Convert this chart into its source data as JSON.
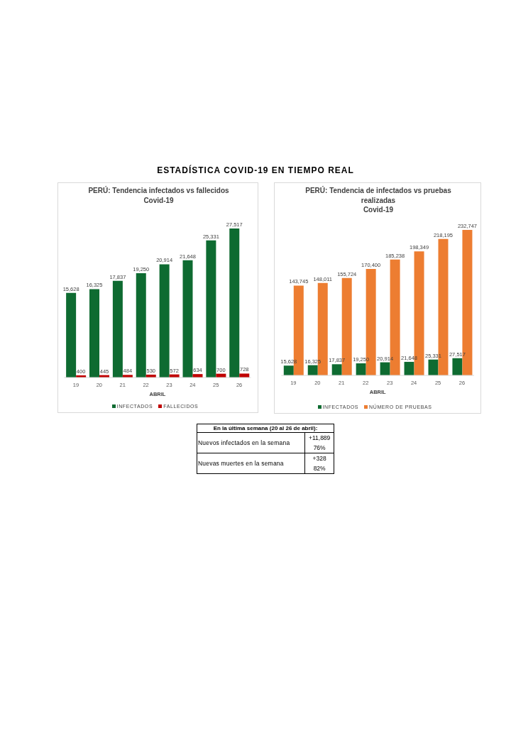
{
  "chart_data": [
    {
      "type": "other",
      "title": "ESTADÍSTICA COVID-19 EN TIEMPO REAL"
    },
    {
      "type": "bar",
      "title": "PERÚ: Tendencia infectados vs fallecidos",
      "subtitle": "Covid-19",
      "xlabel": "ABRIL",
      "categories": [
        "19",
        "20",
        "21",
        "22",
        "23",
        "24",
        "25",
        "26"
      ],
      "series": [
        {
          "name": "INFECTADOS",
          "color": "#0e6b31",
          "values": [
            15628,
            16325,
            17837,
            19250,
            20914,
            21648,
            25331,
            27517
          ],
          "value_labels": [
            "15,628",
            "16,325",
            "17,837",
            "19,250",
            "20,914",
            "21,648",
            "25,331",
            "27,517"
          ]
        },
        {
          "name": "FALLECIDOS",
          "color": "#c00000",
          "values": [
            400,
            445,
            484,
            530,
            572,
            634,
            700,
            728
          ],
          "value_labels": [
            "400",
            "445",
            "484",
            "530",
            "572",
            "634",
            "700",
            "728"
          ]
        }
      ],
      "legend": "bottom",
      "tick_labels": "x"
    },
    {
      "type": "bar",
      "title": "PERÚ: Tendencia de infectados vs pruebas realizadas",
      "subtitle": "Covid-19",
      "xlabel": "ABRIL",
      "categories": [
        "19",
        "20",
        "21",
        "22",
        "23",
        "24",
        "25",
        "26"
      ],
      "series": [
        {
          "name": "INFECTADOS",
          "color": "#0e6b31",
          "values": [
            15628,
            16325,
            17837,
            19250,
            20914,
            21648,
            25331,
            27517
          ],
          "value_labels": [
            "15,628",
            "16,325",
            "17,837",
            "19,250",
            "20,914",
            "21,648",
            "25,331",
            "27,517"
          ]
        },
        {
          "name": "NÚMERO DE PRUEBAS",
          "color": "#ed7d31",
          "values": [
            143745,
            148011,
            155724,
            170400,
            185238,
            198349,
            218195,
            232747
          ],
          "value_labels": [
            "143,745",
            "148,011",
            "155,724",
            "170,400",
            "185,238",
            "198,349",
            "218,195",
            "232,747"
          ]
        }
      ],
      "legend": "bottom",
      "tick_labels": "x"
    },
    {
      "type": "other",
      "title": "En la última semana (20 al 26 de abril):",
      "annotations": [
        "Nuevos infectados en la semana",
        "+11,889",
        "76%",
        "Nuevas muertes en la semana",
        "+328",
        "82%"
      ]
    }
  ]
}
